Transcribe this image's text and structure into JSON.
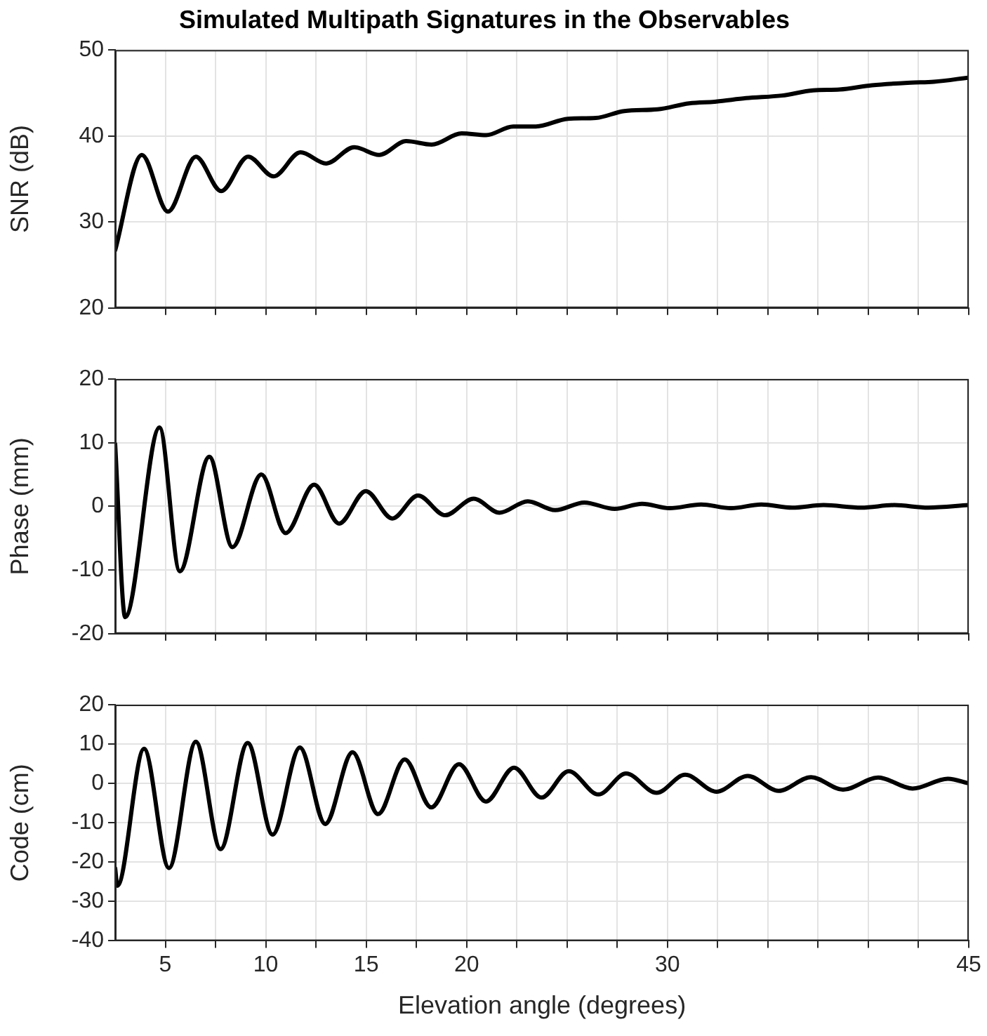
{
  "chart_data": [
    {
      "type": "line",
      "title": "Simulated Multipath Signatures in the Observables",
      "ylabel": "SNR (dB)",
      "color": "#000000",
      "marker": "none",
      "grid": true,
      "tick_labels": "y",
      "x": [
        2.5,
        3.83,
        5.13,
        6.52,
        7.78,
        9.12,
        10.39,
        11.73,
        13.01,
        14.4,
        15.65,
        16.99,
        18.26,
        19.75,
        20.97,
        22.32,
        23.45,
        25.05,
        26.44,
        27.85,
        29.5,
        31.08,
        32.42,
        33.91,
        35.7,
        37.25,
        38.57,
        40.18,
        42.12,
        43.26,
        45
      ],
      "values": [
        26.7,
        37.8,
        31.2,
        37.6,
        33.6,
        37.6,
        35.3,
        38.1,
        36.8,
        38.7,
        37.8,
        39.4,
        39.0,
        40.3,
        40.1,
        41.1,
        41.1,
        42.0,
        42.1,
        42.9,
        43.1,
        43.8,
        44.0,
        44.4,
        44.7,
        45.3,
        45.4,
        45.9,
        46.2,
        46.3,
        46.8
      ],
      "xlim": [
        2.5,
        45
      ],
      "xticks": [
        5,
        {
          "value": 7.5,
          "label": null
        },
        10,
        {
          "value": 12.5,
          "label": null
        },
        15,
        {
          "value": 17.5,
          "label": null
        },
        20,
        {
          "value": 22.5,
          "label": null
        },
        {
          "value": 25,
          "label": null
        },
        {
          "value": 27.5,
          "label": null
        },
        30,
        {
          "value": 32.5,
          "label": null
        },
        {
          "value": 35,
          "label": null
        },
        {
          "value": 37.5,
          "label": null
        },
        {
          "value": 40,
          "label": null
        },
        {
          "value": 42.5,
          "label": null
        },
        45
      ],
      "ylim": [
        20,
        50
      ],
      "yticks": [
        20,
        30,
        40,
        50
      ]
    },
    {
      "type": "line",
      "ylabel": "Phase (mm)",
      "color": "#000000",
      "marker": "none",
      "grid": true,
      "tick_labels": "y",
      "x": [
        2.5,
        3.0,
        4.71,
        5.72,
        7.19,
        8.34,
        9.78,
        10.99,
        12.41,
        13.65,
        14.98,
        16.3,
        17.58,
        18.93,
        20.35,
        21.64,
        23.04,
        24.41,
        25.86,
        27.37,
        28.74,
        30.1,
        31.68,
        33.16,
        34.67,
        36.21,
        37.77,
        39.65,
        41.29,
        42.98,
        45
      ],
      "values": [
        9.8,
        -17.4,
        12.4,
        -10.2,
        7.8,
        -6.4,
        5.0,
        -4.2,
        3.4,
        -2.7,
        2.4,
        -1.9,
        1.7,
        -1.4,
        1.2,
        -1.0,
        0.8,
        -0.6,
        0.6,
        -0.4,
        0.4,
        -0.3,
        0.3,
        -0.3,
        0.3,
        -0.2,
        0.2,
        -0.2,
        0.2,
        -0.2,
        0.2
      ],
      "xlim": [
        2.5,
        45
      ],
      "xticks": [
        5,
        {
          "value": 7.5,
          "label": null
        },
        10,
        {
          "value": 12.5,
          "label": null
        },
        15,
        {
          "value": 17.5,
          "label": null
        },
        20,
        {
          "value": 22.5,
          "label": null
        },
        {
          "value": 25,
          "label": null
        },
        {
          "value": 27.5,
          "label": null
        },
        30,
        {
          "value": 32.5,
          "label": null
        },
        {
          "value": 35,
          "label": null
        },
        {
          "value": 37.5,
          "label": null
        },
        {
          "value": 40,
          "label": null
        },
        {
          "value": 42.5,
          "label": null
        },
        45
      ],
      "ylim": [
        -20,
        20
      ],
      "yticks": [
        -20,
        -10,
        0,
        10,
        20
      ]
    },
    {
      "type": "line",
      "xlabel": "Elevation angle (degrees)",
      "ylabel": "Code (cm)",
      "color": "#000000",
      "marker": "none",
      "grid": true,
      "x": [
        2.5,
        2.61,
        3.94,
        5.18,
        6.52,
        7.75,
        9.1,
        10.34,
        11.7,
        12.96,
        14.32,
        15.59,
        16.92,
        18.24,
        19.62,
        20.96,
        22.36,
        23.73,
        25.08,
        26.56,
        27.94,
        29.46,
        30.88,
        32.44,
        34.0,
        35.53,
        37.15,
        38.74,
        40.49,
        42.2,
        43.96,
        45
      ],
      "values": [
        -21.5,
        -26,
        8.8,
        -21.5,
        10.6,
        -16.7,
        10.3,
        -13,
        9.1,
        -10.3,
        7.9,
        -7.8,
        6.1,
        -6.1,
        4.9,
        -4.6,
        4.0,
        -3.6,
        3.1,
        -2.8,
        2.5,
        -2.4,
        2.2,
        -2.1,
        1.9,
        -1.9,
        1.6,
        -1.6,
        1.5,
        -1.3,
        1.2,
        0
      ],
      "xlim": [
        2.5,
        45
      ],
      "xticks": [
        5,
        {
          "value": 7.5,
          "label": null
        },
        10,
        {
          "value": 12.5,
          "label": null
        },
        15,
        {
          "value": 17.5,
          "label": null
        },
        20,
        {
          "value": 22.5,
          "label": null
        },
        {
          "value": 25,
          "label": null
        },
        {
          "value": 27.5,
          "label": null
        },
        30,
        {
          "value": 32.5,
          "label": null
        },
        {
          "value": 35,
          "label": null
        },
        {
          "value": 37.5,
          "label": null
        },
        {
          "value": 40,
          "label": null
        },
        {
          "value": 42.5,
          "label": null
        },
        45
      ],
      "ylim": [
        -40,
        20
      ],
      "yticks": [
        -40,
        -30,
        -20,
        -10,
        0,
        10,
        20
      ]
    }
  ]
}
